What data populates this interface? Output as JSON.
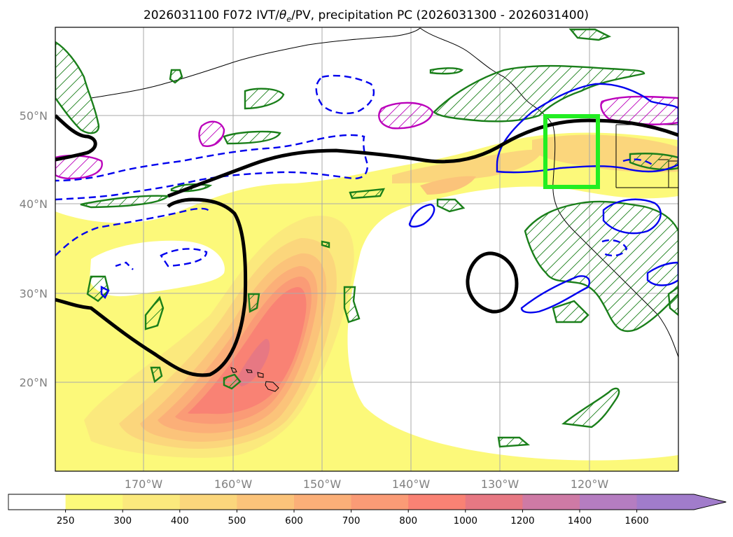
{
  "title": {
    "init": "2026031100 F072 IVT/",
    "theta_sym": "θ",
    "theta_sub": "e",
    "rest": "/PV, precipitation PC (2026031300 - 2026031400)"
  },
  "map": {
    "lon_labels": [
      "170°W",
      "160°W",
      "150°W",
      "140°W",
      "130°W",
      "120°W"
    ],
    "lat_labels": [
      "50°N",
      "40°N",
      "30°N",
      "20°N"
    ],
    "region_box_color": "#22ee22",
    "theta_e_contour_color": "#000000",
    "pv_positive_color": "#0000ee",
    "precip_pc_color": "#1a7f1a",
    "magenta_contour_color": "#bb00bb"
  },
  "colorbar": {
    "ticks": [
      "250",
      "300",
      "400",
      "500",
      "600",
      "700",
      "800",
      "1000",
      "1200",
      "1400",
      "1600"
    ],
    "colors": [
      "#ffffff",
      "#fcf97a",
      "#fbe97d",
      "#fbd67c",
      "#fbc37a",
      "#fbaf78",
      "#fa9b76",
      "#f98274",
      "#e77883",
      "#ce7aa5",
      "#b57dc1",
      "#a17ccb"
    ],
    "extend": "max"
  }
}
